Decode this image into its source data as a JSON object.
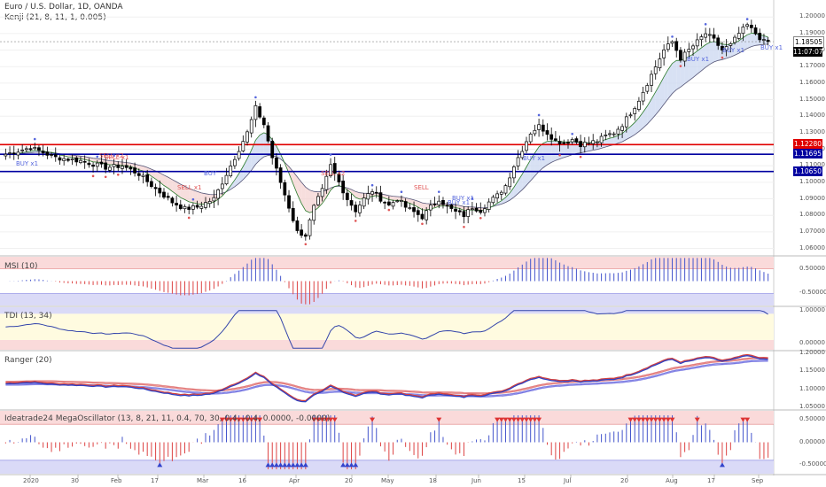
{
  "header": {
    "title": "Euro / U.S. Dollar, 1D, OANDA",
    "indicator": "Kenji (21, 8, 11, 1, 0.005)"
  },
  "price_tags": [
    {
      "text": "1.18505",
      "bg": "#ffffff",
      "fg": "#000000"
    },
    {
      "text": "11:07:07",
      "bg": "#000000",
      "fg": "#ffffff"
    },
    {
      "text": "1.12280",
      "bg": "#e00000",
      "fg": "#ffffff"
    },
    {
      "text": "1.11695",
      "bg": "#0000a0",
      "fg": "#ffffff"
    },
    {
      "text": "1.10650",
      "bg": "#0000a0",
      "fg": "#ffffff"
    }
  ],
  "signal_labels": [
    {
      "text": "BUY x1",
      "color": "#5566dd"
    },
    {
      "text": "SELL x2",
      "color": "#e05555"
    },
    {
      "text": "SELL x1",
      "color": "#e05555"
    },
    {
      "text": "BUY",
      "color": "#5566dd"
    },
    {
      "text": "SELL",
      "color": "#e05555"
    },
    {
      "text": "SELL x2",
      "color": "#e05555"
    },
    {
      "text": "SELL x1",
      "color": "#e05555"
    },
    {
      "text": "BUY x1",
      "color": "#5566dd"
    },
    {
      "text": "BUY x1",
      "color": "#5566dd"
    },
    {
      "text": "BUY x1",
      "color": "#5566dd"
    },
    {
      "text": "BUY x1",
      "color": "#5566dd"
    },
    {
      "text": "BUY x1",
      "color": "#5566dd"
    },
    {
      "text": "BUY x1",
      "color": "#5566dd"
    }
  ],
  "chart_data": {
    "type": "candlestick",
    "symbol": "Euro / U.S. Dollar",
    "timeframe": "1D",
    "x_tick_labels": [
      "2020",
      "30",
      "Feb",
      "17",
      "Mar",
      "16",
      "Apr",
      "20",
      "May",
      "18",
      "Jun",
      "15",
      "Jul",
      "20",
      "Aug",
      "17",
      "Sep"
    ],
    "price_axis": {
      "ticks": [
        1.2,
        1.19,
        1.18,
        1.17,
        1.16,
        1.15,
        1.14,
        1.13,
        1.12,
        1.11,
        1.1,
        1.09,
        1.08,
        1.07,
        1.06
      ],
      "tick_labels": [
        "1.20000",
        "1.19000",
        "1.18000",
        "1.17000",
        "1.16000",
        "1.15000",
        "1.14000",
        "1.13000",
        "1.12000",
        "1.11000",
        "1.10000",
        "1.09000",
        "1.08000",
        "1.07000",
        "1.06000"
      ],
      "ylim": [
        1.056,
        1.206
      ],
      "current_price": 1.18505,
      "horizontal_levels": [
        {
          "value": 1.1228,
          "color": "#e00000"
        },
        {
          "value": 1.11695,
          "color": "#0000a0"
        },
        {
          "value": 1.1065,
          "color": "#0000a0"
        }
      ]
    },
    "close_keypoints": [
      [
        0,
        1.117
      ],
      [
        6,
        1.121
      ],
      [
        12,
        1.115
      ],
      [
        18,
        1.113
      ],
      [
        24,
        1.109
      ],
      [
        28,
        1.11
      ],
      [
        32,
        1.105
      ],
      [
        36,
        1.096
      ],
      [
        40,
        1.088
      ],
      [
        43,
        1.084
      ],
      [
        46,
        1.085
      ],
      [
        50,
        1.09
      ],
      [
        54,
        1.11
      ],
      [
        58,
        1.13
      ],
      [
        60,
        1.145
      ],
      [
        62,
        1.135
      ],
      [
        64,
        1.115
      ],
      [
        66,
        1.1
      ],
      [
        68,
        1.085
      ],
      [
        70,
        1.07
      ],
      [
        72,
        1.068
      ],
      [
        74,
        1.085
      ],
      [
        76,
        1.095
      ],
      [
        78,
        1.11
      ],
      [
        80,
        1.1
      ],
      [
        82,
        1.09
      ],
      [
        84,
        1.083
      ],
      [
        86,
        1.09
      ],
      [
        88,
        1.095
      ],
      [
        90,
        1.09
      ],
      [
        92,
        1.086
      ],
      [
        94,
        1.09
      ],
      [
        96,
        1.085
      ],
      [
        98,
        1.082
      ],
      [
        100,
        1.079
      ],
      [
        102,
        1.085
      ],
      [
        104,
        1.09
      ],
      [
        106,
        1.085
      ],
      [
        108,
        1.082
      ],
      [
        110,
        1.08
      ],
      [
        112,
        1.085
      ],
      [
        114,
        1.083
      ],
      [
        116,
        1.088
      ],
      [
        118,
        1.092
      ],
      [
        120,
        1.098
      ],
      [
        122,
        1.11
      ],
      [
        124,
        1.12
      ],
      [
        126,
        1.13
      ],
      [
        128,
        1.134
      ],
      [
        130,
        1.13
      ],
      [
        132,
        1.125
      ],
      [
        134,
        1.124
      ],
      [
        136,
        1.126
      ],
      [
        138,
        1.123
      ],
      [
        140,
        1.124
      ],
      [
        142,
        1.125
      ],
      [
        144,
        1.128
      ],
      [
        146,
        1.13
      ],
      [
        148,
        1.135
      ],
      [
        150,
        1.142
      ],
      [
        152,
        1.15
      ],
      [
        154,
        1.16
      ],
      [
        156,
        1.17
      ],
      [
        158,
        1.18
      ],
      [
        160,
        1.185
      ],
      [
        162,
        1.175
      ],
      [
        164,
        1.18
      ],
      [
        166,
        1.185
      ],
      [
        168,
        1.19
      ],
      [
        170,
        1.186
      ],
      [
        172,
        1.18
      ],
      [
        174,
        1.183
      ],
      [
        176,
        1.19
      ],
      [
        178,
        1.195
      ],
      [
        180,
        1.19
      ],
      [
        182,
        1.185
      ],
      [
        183,
        1.185
      ]
    ],
    "panes": [
      {
        "name": "MSI (10)",
        "ticks": [
          "0.50000",
          "-0.50000"
        ],
        "ylim": [
          -1,
          1
        ]
      },
      {
        "name": "TDI (13, 34)",
        "ticks": [
          "1.00000",
          "0.00000"
        ],
        "ylim": [
          -0.2,
          1.1
        ]
      },
      {
        "name": "Ranger (20)",
        "ticks": [
          "1.20000",
          "1.15000",
          "1.10000",
          "1.05000"
        ],
        "ylim": [
          1.045,
          1.205
        ]
      },
      {
        "name": "Ideatrade24 MegaOscillator (13, 8, 21, 11, 0.4, 70, 30, 0.4, -0.4, 0.0000, -0.0000)",
        "ticks": [
          "0.50000",
          "0.00000",
          "-0.50000"
        ],
        "ylim": [
          -0.7,
          0.7
        ]
      }
    ]
  }
}
